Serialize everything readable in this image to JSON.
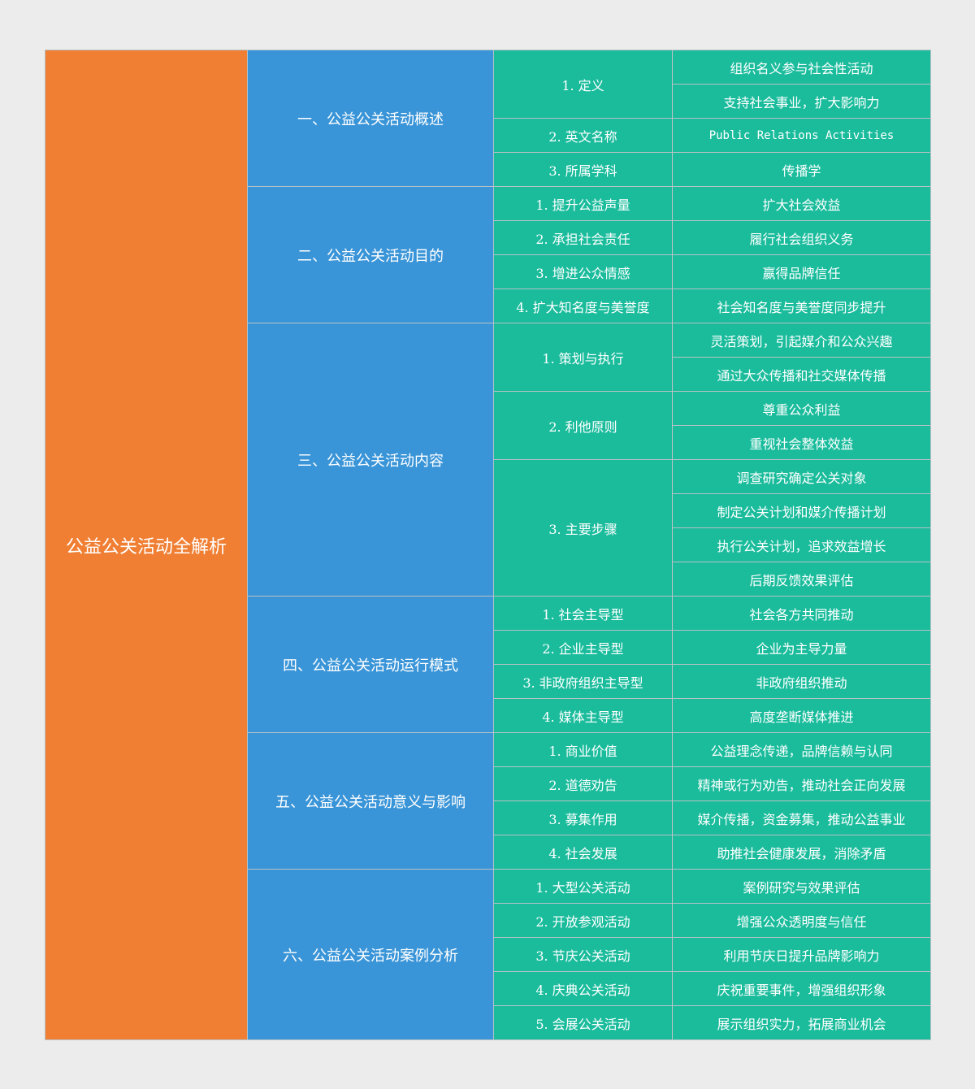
{
  "root": {
    "title": "公益公关活动全解析"
  },
  "colors": {
    "root": "#f07f33",
    "section": "#3a95d8",
    "item": "#1abc9c",
    "border": "#b8c2c6",
    "background": "#ececec"
  },
  "sections": [
    {
      "title": "一、公益公关活动概述",
      "items": [
        {
          "label": "1. 定义",
          "details": [
            "组织名义参与社会性活动",
            "支持社会事业，扩大影响力"
          ]
        },
        {
          "label": "2. 英文名称",
          "details": [
            "Public Relations Activities"
          ]
        },
        {
          "label": "3. 所属学科",
          "details": [
            "传播学"
          ]
        }
      ]
    },
    {
      "title": "二、公益公关活动目的",
      "items": [
        {
          "label": "1. 提升公益声量",
          "details": [
            "扩大社会效益"
          ]
        },
        {
          "label": "2. 承担社会责任",
          "details": [
            "履行社会组织义务"
          ]
        },
        {
          "label": "3. 增进公众情感",
          "details": [
            "赢得品牌信任"
          ]
        },
        {
          "label": "4. 扩大知名度与美誉度",
          "details": [
            "社会知名度与美誉度同步提升"
          ]
        }
      ]
    },
    {
      "title": "三、公益公关活动内容",
      "items": [
        {
          "label": "1. 策划与执行",
          "details": [
            "灵活策划，引起媒介和公众兴趣",
            "通过大众传播和社交媒体传播"
          ]
        },
        {
          "label": "2. 利他原则",
          "details": [
            "尊重公众利益",
            "重视社会整体效益"
          ]
        },
        {
          "label": "3. 主要步骤",
          "details": [
            "调查研究确定公关对象",
            "制定公关计划和媒介传播计划",
            "执行公关计划，追求效益增长",
            "后期反馈效果评估"
          ]
        }
      ]
    },
    {
      "title": "四、公益公关活动运行模式",
      "items": [
        {
          "label": "1. 社会主导型",
          "details": [
            "社会各方共同推动"
          ]
        },
        {
          "label": "2. 企业主导型",
          "details": [
            "企业为主导力量"
          ]
        },
        {
          "label": "3. 非政府组织主导型",
          "details": [
            "非政府组织推动"
          ]
        },
        {
          "label": "4. 媒体主导型",
          "details": [
            "高度垄断媒体推进"
          ]
        }
      ]
    },
    {
      "title": "五、公益公关活动意义与影响",
      "items": [
        {
          "label": "1. 商业价值",
          "details": [
            "公益理念传递，品牌信赖与认同"
          ]
        },
        {
          "label": "2. 道德劝告",
          "details": [
            "精神或行为劝告，推动社会正向发展"
          ]
        },
        {
          "label": "3. 募集作用",
          "details": [
            "媒介传播，资金募集，推动公益事业"
          ]
        },
        {
          "label": "4. 社会发展",
          "details": [
            "助推社会健康发展，消除矛盾"
          ]
        }
      ]
    },
    {
      "title": "六、公益公关活动案例分析",
      "items": [
        {
          "label": "1. 大型公关活动",
          "details": [
            "案例研究与效果评估"
          ]
        },
        {
          "label": "2. 开放参观活动",
          "details": [
            "增强公众透明度与信任"
          ]
        },
        {
          "label": "3. 节庆公关活动",
          "details": [
            "利用节庆日提升品牌影响力"
          ]
        },
        {
          "label": "4. 庆典公关活动",
          "details": [
            "庆祝重要事件，增强组织形象"
          ]
        },
        {
          "label": "5. 会展公关活动",
          "details": [
            "展示组织实力，拓展商业机会"
          ]
        }
      ]
    }
  ]
}
